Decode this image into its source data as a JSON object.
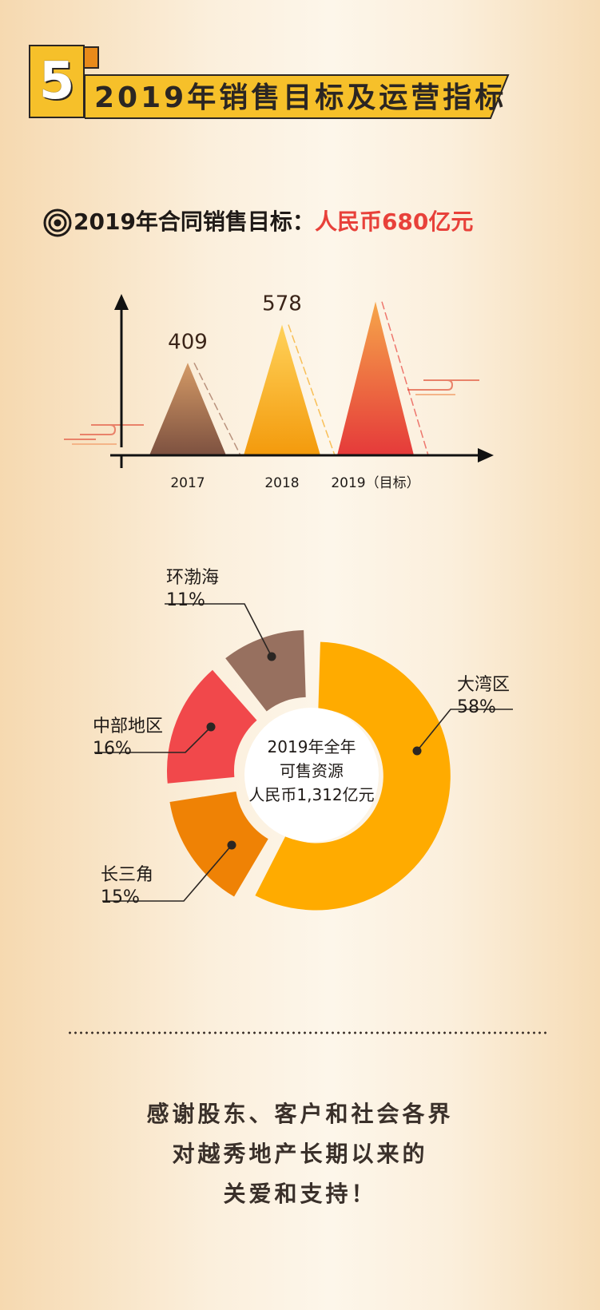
{
  "header": {
    "section_number": "5",
    "title": "2019年销售目标及运营指标"
  },
  "target": {
    "label": "2019年合同销售目标：",
    "value": "人民币680亿元"
  },
  "chart_data": [
    {
      "type": "bar",
      "categories": [
        "2017",
        "2018",
        "2019（目标）"
      ],
      "values": [
        409,
        578,
        680
      ],
      "title": "",
      "xlabel": "",
      "ylabel": "",
      "ylim": [
        0,
        700
      ],
      "colors": [
        "#9c6a52",
        "#f6a818",
        "#e8413a"
      ],
      "value_label_colors": [
        "#3a2418",
        "#3a2418",
        "#e8413a"
      ]
    },
    {
      "type": "pie",
      "donut": true,
      "center_text": [
        "2019年全年",
        "可售资源",
        "人民币1,312亿元"
      ],
      "slices": [
        {
          "name": "大湾区",
          "value": 58,
          "label": "58%",
          "color": "#ffab00"
        },
        {
          "name": "长三角",
          "value": 15,
          "label": "15%",
          "color": "#ef8205"
        },
        {
          "name": "中部地区",
          "value": 16,
          "label": "16%",
          "color": "#f1484b"
        },
        {
          "name": "环渤海",
          "value": 11,
          "label": "11%",
          "color": "#97705f"
        }
      ]
    }
  ],
  "footer": {
    "lines": [
      "感谢股东、客户和社会各界",
      "对越秀地产长期以来的",
      "关爱和支持！"
    ]
  }
}
